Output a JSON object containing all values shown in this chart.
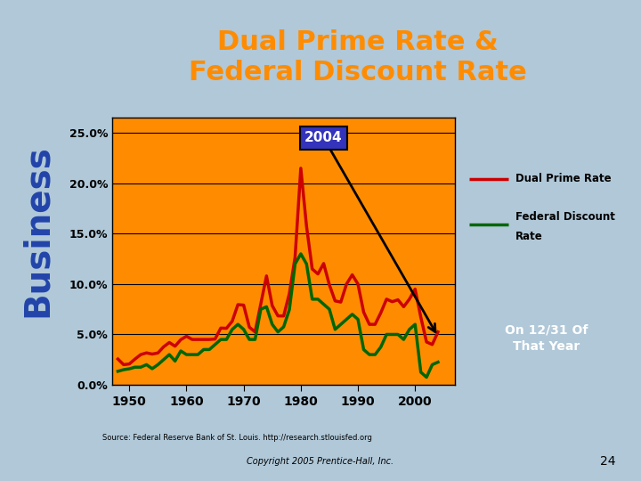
{
  "title": "Dual Prime Rate &\nFederal Discount Rate",
  "title_color": "#FF8C00",
  "title_bg": "#4444CC",
  "bg_slide": "#B0C8D8",
  "bg_chart": "#FF8C00",
  "sidebar_text": "Business",
  "sidebar_bg": "#B0C8D8",
  "xlabel_ticks": [
    1950,
    1960,
    1970,
    1980,
    1990,
    2000
  ],
  "yticks": [
    0.0,
    5.0,
    10.0,
    15.0,
    20.0,
    25.0
  ],
  "ylim": [
    0.0,
    26.5
  ],
  "xlim": [
    1947,
    2007
  ],
  "annotation_label": "2004",
  "annotation_box_color": "#3333BB",
  "annotation_text_color": "white",
  "on_1231_label": "On 12/31 Of\nThat Year",
  "on_1231_bg": "#3333BB",
  "legend_bg": "white",
  "source_text": "Source: Federal Reserve Bank of St. Louis. http://research.stlouisfed.org",
  "copyright_text": "Copyright 2005 Prentice-Hall, Inc.",
  "page_num": "24",
  "dual_prime_color": "#CC0000",
  "fed_discount_color": "#006600",
  "dual_prime_years": [
    1948,
    1949,
    1950,
    1951,
    1952,
    1953,
    1954,
    1955,
    1956,
    1957,
    1958,
    1959,
    1960,
    1961,
    1962,
    1963,
    1964,
    1965,
    1966,
    1967,
    1968,
    1969,
    1970,
    1971,
    1972,
    1973,
    1974,
    1975,
    1976,
    1977,
    1978,
    1979,
    1980,
    1981,
    1982,
    1983,
    1984,
    1985,
    1986,
    1987,
    1988,
    1989,
    1990,
    1991,
    1992,
    1993,
    1994,
    1995,
    1996,
    1997,
    1998,
    1999,
    2000,
    2001,
    2002,
    2003,
    2004
  ],
  "dual_prime_values": [
    2.56,
    2.0,
    2.07,
    2.56,
    3.0,
    3.17,
    3.05,
    3.16,
    3.77,
    4.2,
    3.83,
    4.48,
    4.82,
    4.5,
    4.5,
    4.5,
    4.5,
    4.54,
    5.63,
    5.61,
    6.31,
    7.96,
    7.91,
    5.72,
    5.25,
    8.02,
    10.81,
    7.86,
    6.84,
    6.83,
    9.06,
    12.67,
    21.5,
    15.75,
    11.5,
    11.0,
    12.04,
    9.93,
    8.33,
    8.21,
    10.0,
    10.92,
    10.0,
    7.21,
    6.0,
    6.0,
    7.15,
    8.5,
    8.25,
    8.44,
    7.75,
    8.5,
    9.5,
    6.71,
    4.25,
    4.0,
    5.25
  ],
  "fed_disc_years": [
    1948,
    1949,
    1950,
    1951,
    1952,
    1953,
    1954,
    1955,
    1956,
    1957,
    1958,
    1959,
    1960,
    1961,
    1962,
    1963,
    1964,
    1965,
    1966,
    1967,
    1968,
    1969,
    1970,
    1971,
    1972,
    1973,
    1974,
    1975,
    1976,
    1977,
    1978,
    1979,
    1980,
    1981,
    1982,
    1983,
    1984,
    1985,
    1986,
    1987,
    1988,
    1989,
    1990,
    1991,
    1992,
    1993,
    1994,
    1995,
    1996,
    1997,
    1998,
    1999,
    2000,
    2001,
    2002,
    2003,
    2004
  ],
  "fed_disc_values": [
    1.34,
    1.5,
    1.59,
    1.75,
    1.75,
    2.0,
    1.6,
    2.0,
    2.5,
    3.0,
    2.36,
    3.36,
    3.0,
    3.0,
    3.0,
    3.5,
    3.5,
    4.0,
    4.5,
    4.5,
    5.5,
    6.0,
    5.5,
    4.5,
    4.5,
    7.5,
    7.75,
    6.0,
    5.25,
    5.75,
    7.46,
    12.0,
    13.0,
    12.0,
    8.5,
    8.5,
    8.0,
    7.5,
    5.5,
    6.0,
    6.5,
    7.0,
    6.5,
    3.5,
    3.0,
    3.0,
    3.75,
    5.0,
    5.0,
    5.0,
    4.5,
    5.5,
    6.0,
    1.25,
    0.75,
    2.0,
    2.25
  ]
}
